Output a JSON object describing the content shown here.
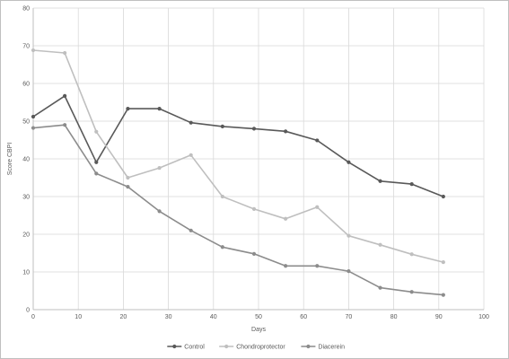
{
  "chart_data": {
    "type": "line",
    "title": "",
    "xlabel": "Days",
    "ylabel": "Score CBPI",
    "xlim": [
      0,
      100
    ],
    "ylim": [
      0,
      80
    ],
    "x_ticks": [
      0,
      10,
      20,
      30,
      40,
      50,
      60,
      70,
      80,
      90,
      100
    ],
    "y_ticks": [
      0,
      10,
      20,
      30,
      40,
      50,
      60,
      70,
      80
    ],
    "grid": "vertical and horizontal major gridlines",
    "legend_position": "bottom",
    "x": [
      0,
      7,
      14,
      21,
      28,
      35,
      42,
      49,
      56,
      63,
      70,
      77,
      84,
      91
    ],
    "series": [
      {
        "name": "Control",
        "color": "#595959",
        "values": [
          51.2,
          56.7,
          39.1,
          53.3,
          53.3,
          49.6,
          48.6,
          48.0,
          47.3,
          44.9,
          39.1,
          34.1,
          33.3,
          30.0
        ]
      },
      {
        "name": "Chondroprotector",
        "color": "#bfbfbf",
        "values": [
          68.8,
          68.1,
          47.2,
          35.0,
          37.6,
          41.0,
          30.0,
          26.7,
          24.1,
          27.2,
          19.6,
          17.2,
          14.7,
          12.6
        ]
      },
      {
        "name": "Diacerein",
        "color": "#8c8c8c",
        "values": [
          48.2,
          49.0,
          36.1,
          32.6,
          26.1,
          21.0,
          16.6,
          14.8,
          11.6,
          11.6,
          10.2,
          5.8,
          4.7,
          3.9
        ]
      }
    ]
  }
}
